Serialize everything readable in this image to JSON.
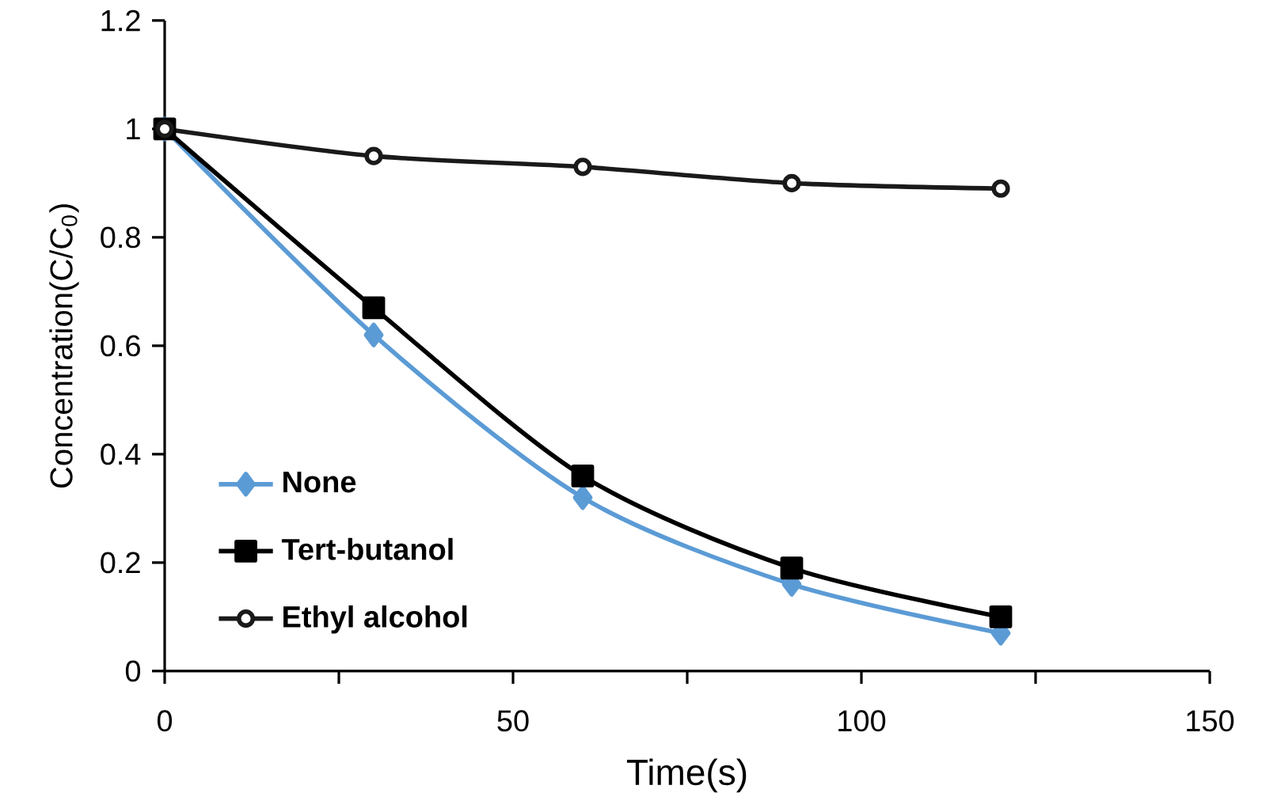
{
  "chart_data": {
    "type": "line",
    "xlabel": "Time(s)",
    "ylabel": "Concentration(C/C$_{0}$)",
    "x": [
      0,
      30,
      60,
      90,
      120
    ],
    "xlim": [
      0,
      150
    ],
    "xticks": [
      0,
      {
        "value": 25,
        "label": null
      },
      50,
      {
        "value": 75,
        "label": null
      },
      100,
      {
        "value": 125,
        "label": null
      },
      150
    ],
    "ylim": [
      0,
      1.2
    ],
    "yticks": [
      0,
      0.2,
      0.4,
      0.6,
      0.8,
      1,
      1.2
    ],
    "grid": false,
    "legend": "bottom left",
    "line_style": "solid",
    "series": [
      {
        "name": "None",
        "color": "#5b9bd5",
        "marker": "diamond",
        "values": [
          1,
          0.62,
          0.32,
          0.16,
          0.07
        ]
      },
      {
        "name": "Tert-butanol",
        "color": "#000000",
        "marker": "square",
        "values": [
          1,
          0.67,
          0.36,
          0.19,
          0.1
        ]
      },
      {
        "name": "Ethyl alcohol",
        "color": "#1a1a1a",
        "marker": "circle",
        "values": [
          1,
          0.95,
          0.93,
          0.9,
          0.89
        ]
      }
    ]
  }
}
